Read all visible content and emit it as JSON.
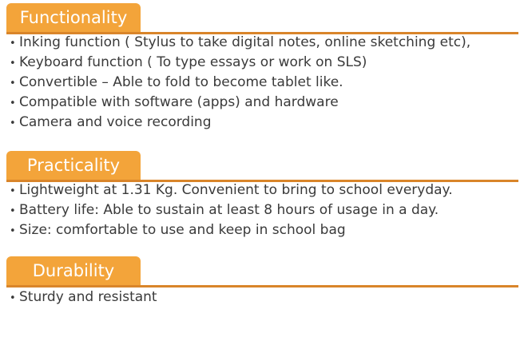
{
  "sections": [
    {
      "title": "Functionality",
      "items": [
        "Inking function ( Stylus to take digital notes, online sketching etc),",
        "Keyboard function ( To type essays or work on SLS)",
        "Convertible – Able to fold to become tablet like.",
        "Compatible with software (apps) and hardware",
        "Camera and voice recording"
      ]
    },
    {
      "title": "Practicality",
      "items": [
        "Lightweight at 1.31 Kg. Convenient to bring to school everyday.",
        "Battery life: Able to sustain at least 8 hours of usage in a day.",
        "Size: comfortable to use and keep in school bag"
      ]
    },
    {
      "title": "Durability",
      "items": [
        "Sturdy and resistant"
      ]
    }
  ],
  "colors": {
    "tab": "#f3a43a",
    "rule": "#d9852a",
    "text": "#3a3a3a"
  }
}
